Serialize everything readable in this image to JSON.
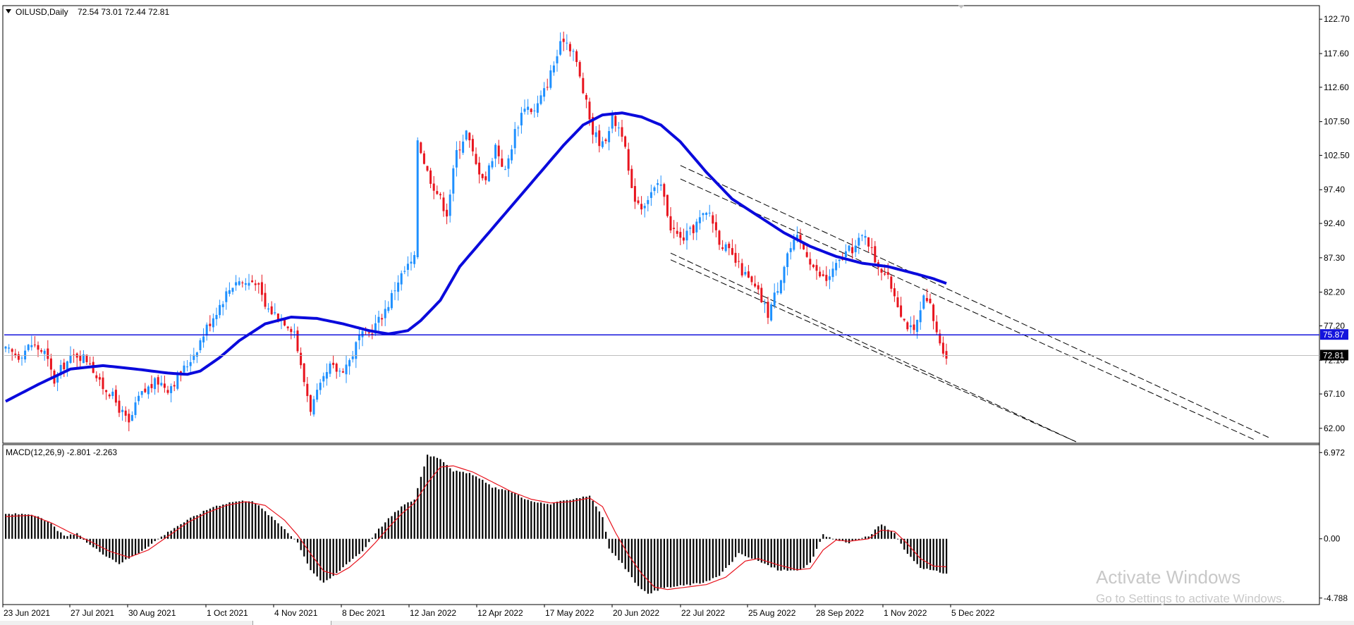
{
  "chart_data": [
    {
      "type": "candlestick",
      "symbol": "OILUSD,Daily",
      "ohlc": "72.54 73.01 72.44 72.81",
      "ylim": [
        60.0,
        124.5
      ],
      "y_ticks": [
        "122.70",
        "117.60",
        "112.60",
        "107.50",
        "102.50",
        "97.40",
        "92.40",
        "87.30",
        "82.20",
        "77.20",
        "72.10",
        "67.10",
        "62.00"
      ],
      "x_ticks": [
        "23 Jun 2021",
        "27 Jul 2021",
        "30 Aug 2021",
        "1 Oct 2021",
        "4 Nov 2021",
        "8 Dec 2021",
        "12 Jan 2022",
        "12 Apr 2022",
        "17 May 2022",
        "20 Jun 2022",
        "22 Jul 2022",
        "25 Aug 2022",
        "28 Sep 2022",
        "1 Nov 2022",
        "5 Dec 2022"
      ],
      "horizontal_level": "75.87",
      "current_price": "72.81",
      "close_path": [
        [
          0,
          73.5
        ],
        [
          4,
          72.8
        ],
        [
          8,
          74.5
        ],
        [
          12,
          73.2
        ],
        [
          15,
          69.0
        ],
        [
          18,
          71.5
        ],
        [
          22,
          73.0
        ],
        [
          26,
          72.0
        ],
        [
          29,
          68.5
        ],
        [
          32,
          67.5
        ],
        [
          35,
          65.0
        ],
        [
          38,
          62.5
        ],
        [
          41,
          66.5
        ],
        [
          44,
          68.0
        ],
        [
          47,
          69.0
        ],
        [
          50,
          68.0
        ],
        [
          53,
          69.5
        ],
        [
          56,
          71.5
        ],
        [
          59,
          74.0
        ],
        [
          62,
          77.0
        ],
        [
          65,
          79.5
        ],
        [
          68,
          82.0
        ],
        [
          71,
          84.0
        ],
        [
          74,
          83.5
        ],
        [
          77,
          84.0
        ],
        [
          80,
          80.0
        ],
        [
          83,
          79.0
        ],
        [
          86,
          78.0
        ],
        [
          89,
          76.5
        ],
        [
          91,
          71.0
        ],
        [
          94,
          65.0
        ],
        [
          97,
          68.0
        ],
        [
          100,
          71.0
        ],
        [
          103,
          70.5
        ],
        [
          106,
          72.0
        ],
        [
          109,
          75.5
        ],
        [
          112,
          76.0
        ],
        [
          115,
          78.0
        ],
        [
          118,
          80.5
        ],
        [
          121,
          84.0
        ],
        [
          124,
          86.0
        ],
        [
          126,
          87.0
        ],
        [
          127,
          105.0
        ],
        [
          130,
          100.0
        ],
        [
          133,
          97.0
        ],
        [
          136,
          94.0
        ],
        [
          139,
          103.0
        ],
        [
          142,
          106.0
        ],
        [
          145,
          101.0
        ],
        [
          148,
          99.0
        ],
        [
          151,
          104.0
        ],
        [
          154,
          100.0
        ],
        [
          157,
          106.0
        ],
        [
          160,
          110.0
        ],
        [
          163,
          109.0
        ],
        [
          166,
          112.0
        ],
        [
          169,
          116.0
        ],
        [
          172,
          120.0
        ],
        [
          175,
          118.0
        ],
        [
          178,
          112.0
        ],
        [
          181,
          106.0
        ],
        [
          184,
          104.0
        ],
        [
          187,
          108.0
        ],
        [
          190,
          106.0
        ],
        [
          193,
          97.0
        ],
        [
          196,
          95.0
        ],
        [
          199,
          97.0
        ],
        [
          202,
          98.0
        ],
        [
          205,
          92.0
        ],
        [
          208,
          90.0
        ],
        [
          211,
          91.0
        ],
        [
          214,
          93.0
        ],
        [
          217,
          94.0
        ],
        [
          220,
          90.0
        ],
        [
          223,
          88.0
        ],
        [
          226,
          86.0
        ],
        [
          229,
          84.0
        ],
        [
          232,
          82.0
        ],
        [
          235,
          79.0
        ],
        [
          238,
          83.0
        ],
        [
          241,
          88.0
        ],
        [
          244,
          90.0
        ],
        [
          247,
          88.0
        ],
        [
          250,
          85.0
        ],
        [
          253,
          84.0
        ],
        [
          256,
          86.0
        ],
        [
          259,
          88.0
        ],
        [
          262,
          89.0
        ],
        [
          265,
          91.0
        ],
        [
          268,
          87.0
        ],
        [
          271,
          85.0
        ],
        [
          274,
          82.0
        ],
        [
          277,
          78.0
        ],
        [
          280,
          76.0
        ],
        [
          283,
          81.0
        ],
        [
          285,
          80.0
        ],
        [
          287,
          76.0
        ],
        [
          290,
          72.8
        ]
      ],
      "ma_path": [
        [
          0,
          66.0
        ],
        [
          10,
          68.5
        ],
        [
          20,
          70.8
        ],
        [
          30,
          71.3
        ],
        [
          40,
          70.8
        ],
        [
          50,
          70.2
        ],
        [
          56,
          70.0
        ],
        [
          60,
          70.5
        ],
        [
          66,
          72.5
        ],
        [
          72,
          75.0
        ],
        [
          80,
          77.5
        ],
        [
          88,
          78.5
        ],
        [
          96,
          78.3
        ],
        [
          104,
          77.5
        ],
        [
          112,
          76.5
        ],
        [
          118,
          76.0
        ],
        [
          124,
          76.5
        ],
        [
          128,
          78.0
        ],
        [
          134,
          81.0
        ],
        [
          140,
          86.0
        ],
        [
          148,
          90.5
        ],
        [
          156,
          95.0
        ],
        [
          164,
          99.5
        ],
        [
          172,
          104.0
        ],
        [
          178,
          107.0
        ],
        [
          184,
          108.5
        ],
        [
          190,
          108.8
        ],
        [
          196,
          108.2
        ],
        [
          202,
          107.0
        ],
        [
          208,
          104.5
        ],
        [
          216,
          100.0
        ],
        [
          224,
          96.0
        ],
        [
          232,
          93.5
        ],
        [
          240,
          91.0
        ],
        [
          248,
          89.0
        ],
        [
          256,
          87.5
        ],
        [
          264,
          86.5
        ],
        [
          272,
          86.0
        ],
        [
          280,
          85.0
        ],
        [
          286,
          84.2
        ],
        [
          290,
          83.5
        ]
      ],
      "trendlines": [
        [
          [
            208,
            101.0
          ],
          [
            390,
            60.5
          ]
        ],
        [
          [
            208,
            99.0
          ],
          [
            385,
            60.3
          ]
        ],
        [
          [
            205,
            88.0
          ],
          [
            330,
            60.0
          ]
        ],
        [
          [
            205,
            87.0
          ],
          [
            330,
            60.0
          ]
        ]
      ]
    },
    {
      "type": "macd",
      "label": "MACD(12,26,9) -2.801 -2.263",
      "ylim": [
        -5.2,
        7.5
      ],
      "y_ticks": [
        "6.972",
        "0.00",
        "-4.788"
      ],
      "hist_path": [
        [
          0,
          2.0
        ],
        [
          8,
          2.0
        ],
        [
          14,
          1.2
        ],
        [
          18,
          0.2
        ],
        [
          22,
          0.4
        ],
        [
          26,
          -0.5
        ],
        [
          30,
          -1.2
        ],
        [
          35,
          -2.0
        ],
        [
          40,
          -1.3
        ],
        [
          46,
          -0.2
        ],
        [
          52,
          0.9
        ],
        [
          58,
          1.8
        ],
        [
          64,
          2.6
        ],
        [
          70,
          3.0
        ],
        [
          76,
          3.1
        ],
        [
          80,
          2.2
        ],
        [
          86,
          0.8
        ],
        [
          90,
          -0.3
        ],
        [
          94,
          -2.5
        ],
        [
          98,
          -3.6
        ],
        [
          102,
          -2.8
        ],
        [
          106,
          -1.8
        ],
        [
          110,
          -1.0
        ],
        [
          114,
          0.5
        ],
        [
          118,
          1.6
        ],
        [
          122,
          2.6
        ],
        [
          126,
          3.2
        ],
        [
          130,
          6.8
        ],
        [
          134,
          6.5
        ],
        [
          138,
          5.5
        ],
        [
          144,
          5.2
        ],
        [
          150,
          4.2
        ],
        [
          156,
          3.8
        ],
        [
          162,
          3.0
        ],
        [
          168,
          2.8
        ],
        [
          174,
          3.2
        ],
        [
          180,
          3.5
        ],
        [
          184,
          1.8
        ],
        [
          186,
          -0.8
        ],
        [
          190,
          -2.0
        ],
        [
          194,
          -3.5
        ],
        [
          198,
          -4.5
        ],
        [
          202,
          -4.0
        ],
        [
          208,
          -3.8
        ],
        [
          214,
          -3.6
        ],
        [
          220,
          -3.0
        ],
        [
          226,
          -1.2
        ],
        [
          232,
          -1.8
        ],
        [
          238,
          -2.5
        ],
        [
          244,
          -2.6
        ],
        [
          248,
          -2.0
        ],
        [
          252,
          0.3
        ],
        [
          256,
          -0.1
        ],
        [
          260,
          -0.3
        ],
        [
          266,
          0.2
        ],
        [
          270,
          1.2
        ],
        [
          274,
          0.4
        ],
        [
          278,
          -1.2
        ],
        [
          282,
          -2.3
        ],
        [
          286,
          -2.6
        ],
        [
          290,
          -2.8
        ]
      ],
      "signal_path": [
        [
          0,
          1.8
        ],
        [
          8,
          1.9
        ],
        [
          14,
          1.3
        ],
        [
          20,
          0.5
        ],
        [
          26,
          -0.2
        ],
        [
          32,
          -1.0
        ],
        [
          38,
          -1.5
        ],
        [
          44,
          -0.9
        ],
        [
          50,
          0.2
        ],
        [
          56,
          1.3
        ],
        [
          62,
          2.1
        ],
        [
          68,
          2.7
        ],
        [
          74,
          3.0
        ],
        [
          80,
          2.7
        ],
        [
          86,
          1.5
        ],
        [
          90,
          0.3
        ],
        [
          94,
          -1.2
        ],
        [
          98,
          -2.6
        ],
        [
          102,
          -2.9
        ],
        [
          106,
          -2.3
        ],
        [
          110,
          -1.4
        ],
        [
          114,
          -0.3
        ],
        [
          118,
          0.9
        ],
        [
          122,
          2.0
        ],
        [
          126,
          2.9
        ],
        [
          130,
          4.5
        ],
        [
          134,
          5.8
        ],
        [
          138,
          5.9
        ],
        [
          144,
          5.4
        ],
        [
          150,
          4.6
        ],
        [
          156,
          3.8
        ],
        [
          162,
          3.2
        ],
        [
          168,
          2.9
        ],
        [
          174,
          3.0
        ],
        [
          180,
          3.3
        ],
        [
          184,
          2.6
        ],
        [
          188,
          0.5
        ],
        [
          192,
          -1.3
        ],
        [
          196,
          -2.8
        ],
        [
          200,
          -3.9
        ],
        [
          204,
          -4.1
        ],
        [
          210,
          -3.9
        ],
        [
          216,
          -3.7
        ],
        [
          222,
          -3.1
        ],
        [
          228,
          -1.8
        ],
        [
          232,
          -1.6
        ],
        [
          238,
          -2.1
        ],
        [
          244,
          -2.5
        ],
        [
          248,
          -2.4
        ],
        [
          252,
          -0.9
        ],
        [
          256,
          -0.1
        ],
        [
          260,
          -0.2
        ],
        [
          266,
          0.0
        ],
        [
          270,
          0.7
        ],
        [
          274,
          0.6
        ],
        [
          278,
          -0.4
        ],
        [
          282,
          -1.6
        ],
        [
          286,
          -2.2
        ],
        [
          290,
          -2.26
        ]
      ]
    }
  ],
  "watermark": {
    "line1": "Activate Windows",
    "line2": "Go to Settings to activate Windows."
  },
  "colors": {
    "bull": "#1e90ff",
    "bear": "#e8141e",
    "ma": "#0a0adc",
    "level": "#1414dc",
    "signal": "#e8141e",
    "hist": "#000000",
    "grid": "#c8c8c8"
  }
}
